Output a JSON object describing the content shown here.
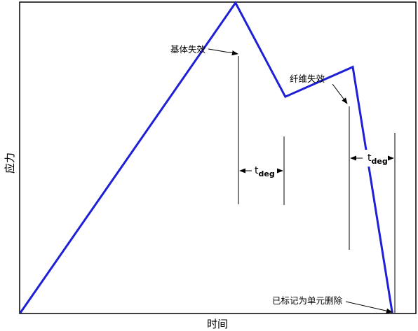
{
  "chart_data": {
    "type": "line",
    "xlabel": "时间",
    "ylabel": "应力",
    "grid": false,
    "legend": "none",
    "line_color": "#1f1fd6",
    "series": [
      {
        "points": [
          {
            "x": 0,
            "y": 0
          },
          {
            "x": 54.5,
            "y": 100
          },
          {
            "x": 67.1,
            "y": 69.7
          },
          {
            "x": 84.2,
            "y": 79.3
          },
          {
            "x": 94.2,
            "y": 0
          }
        ]
      }
    ],
    "xlim": [
      0,
      100
    ],
    "ylim": [
      0,
      100
    ],
    "annotations": [
      {
        "id": "matrix",
        "text": "基体失效",
        "at": {
          "x": 54.5,
          "y": 100
        }
      },
      {
        "id": "fiber",
        "text": "纤维失效",
        "at": {
          "x": 84.2,
          "y": 79.3
        }
      },
      {
        "id": "deleted",
        "text": "已标记为单元删除",
        "at": {
          "x": 94.2,
          "y": 0
        }
      }
    ],
    "intervals": [
      {
        "id": "tdeg1",
        "label": "t",
        "subscript": "deg",
        "from": 55.7,
        "to": 67.1
      },
      {
        "id": "tdeg2",
        "label": "t",
        "subscript": "deg",
        "from": 84.2,
        "to": 94.2
      }
    ]
  }
}
